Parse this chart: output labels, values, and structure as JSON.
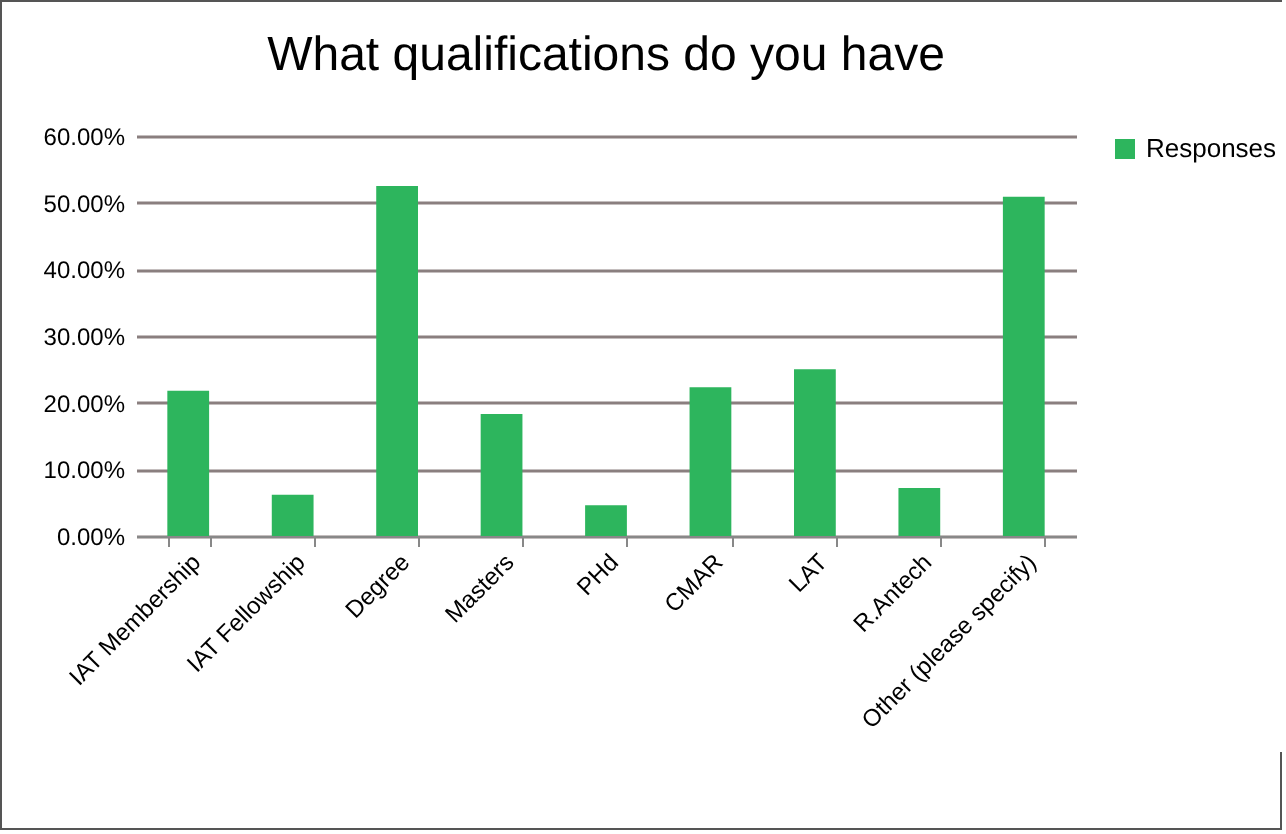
{
  "chart_data": {
    "type": "bar",
    "title": "What qualifications do you have",
    "categories": [
      "IAT Membership",
      "IAT Fellowship",
      "Degree",
      "Masters",
      "PHd",
      "CMAR",
      "LAT",
      "R.Antech",
      "Other (please specify)"
    ],
    "series": [
      {
        "name": "Responses",
        "color": "#2db55d",
        "values": [
          21.8,
          6.2,
          52.5,
          18.3,
          4.6,
          22.3,
          25.0,
          7.2,
          50.9
        ]
      }
    ],
    "ylim": [
      0,
      60
    ],
    "yticks": [
      {
        "value": 0,
        "label": "0.00%"
      },
      {
        "value": 10,
        "label": "10.00%"
      },
      {
        "value": 20,
        "label": "20.00%"
      },
      {
        "value": 30,
        "label": "30.00%"
      },
      {
        "value": 40,
        "label": "40.00%"
      },
      {
        "value": 50,
        "label": "50.00%"
      },
      {
        "value": 60,
        "label": "60.00%"
      }
    ],
    "grid": "y",
    "legend": "right"
  }
}
